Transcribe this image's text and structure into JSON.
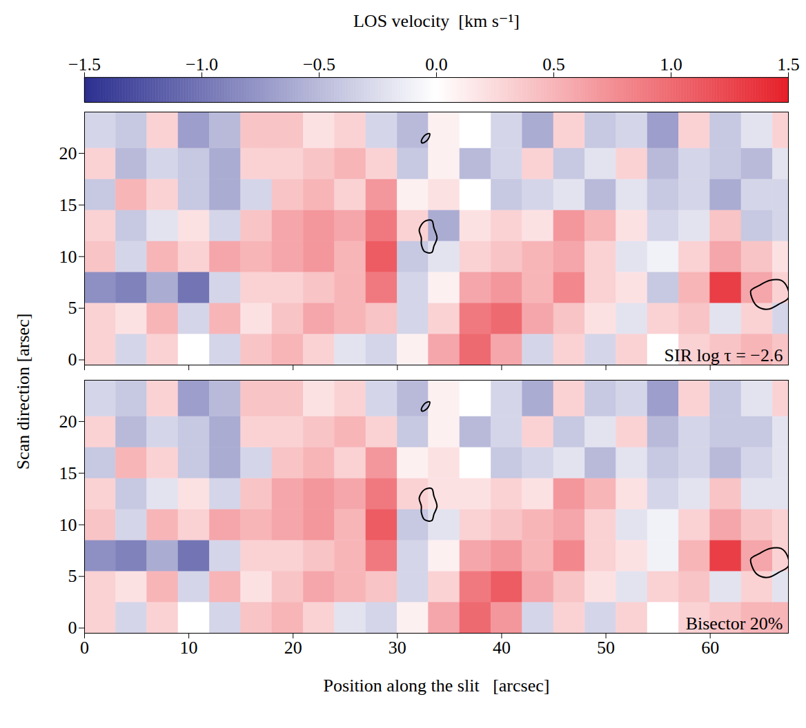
{
  "chart_data": {
    "type": "heatmap",
    "xlabel": "Position along the slit   [arcsec]",
    "ylabel": "Scan direction   [arsec]",
    "colorbar": {
      "label": "LOS velocity  [km s⁻¹]",
      "range": [
        -1.5,
        1.5
      ],
      "ticks": [
        {
          "value": -1.5,
          "label": "−1.5"
        },
        {
          "value": -1,
          "label": "−1.0"
        },
        {
          "value": -0.5,
          "label": "−0.5"
        },
        {
          "value": 0,
          "label": "0.0"
        },
        {
          "value": 0.5,
          "label": "0.5"
        },
        {
          "value": 1,
          "label": "1.0"
        },
        {
          "value": 1.5,
          "label": "1.5"
        }
      ],
      "colors": [
        "#2c2f8f",
        "#ffffff",
        "#e6202a"
      ]
    },
    "panels": [
      {
        "title": "SIR log τ = −2.6",
        "xlim": [
          0,
          67.5
        ],
        "ylim": [
          -0.5,
          24
        ],
        "xticks": [
          0,
          10,
          20,
          30,
          40,
          50,
          60
        ],
        "yticks": [
          0,
          5,
          10,
          15,
          20
        ],
        "tick_labels": "y",
        "xbins": [
          0,
          3,
          6,
          9,
          12,
          15,
          18,
          21,
          24,
          27,
          30,
          33,
          36,
          39,
          42,
          45,
          48,
          51,
          54,
          57,
          60,
          63,
          66,
          69
        ],
        "ybins": [
          -0.5,
          2.5,
          5.5,
          8.5,
          11.5,
          14.5,
          17.5,
          20.5,
          24
        ],
        "values": [
          [
            0.3,
            -0.3,
            0.3,
            0.0,
            -0.3,
            0.4,
            0.5,
            0.3,
            -0.2,
            -0.3,
            0.1,
            0.6,
            1.0,
            0.6,
            -0.3,
            0.3,
            -0.3,
            0.3,
            0.0,
            0.3,
            0.4,
            0.5,
            0.4
          ],
          [
            0.3,
            0.2,
            0.5,
            -0.3,
            0.5,
            0.2,
            0.4,
            0.6,
            0.5,
            0.4,
            -0.3,
            0.3,
            0.9,
            1.0,
            0.6,
            0.4,
            0.2,
            -0.2,
            0.3,
            0.4,
            -0.2,
            0.3,
            -0.3
          ],
          [
            -0.8,
            -0.9,
            -0.6,
            -1.0,
            -0.3,
            0.3,
            0.3,
            0.4,
            0.5,
            0.9,
            -0.3,
            0.1,
            0.6,
            0.7,
            0.5,
            0.8,
            0.3,
            0.2,
            -0.4,
            0.5,
            1.3,
            0.6,
            0.3
          ],
          [
            0.4,
            -0.3,
            0.5,
            0.3,
            0.6,
            0.5,
            0.6,
            0.7,
            0.5,
            1.1,
            -0.4,
            -0.2,
            0.3,
            0.4,
            0.5,
            0.6,
            0.3,
            -0.2,
            -0.1,
            0.3,
            0.6,
            0.4,
            0.2
          ],
          [
            0.3,
            -0.4,
            -0.2,
            0.2,
            -0.3,
            0.4,
            0.6,
            0.7,
            0.6,
            0.9,
            0.3,
            -0.6,
            0.2,
            0.3,
            0.2,
            0.7,
            0.5,
            0.2,
            -0.3,
            -0.2,
            0.4,
            -0.4,
            -0.3
          ],
          [
            -0.4,
            0.5,
            0.3,
            -0.4,
            -0.6,
            -0.3,
            0.4,
            0.5,
            0.3,
            0.7,
            0.1,
            0.2,
            0.0,
            -0.4,
            -0.3,
            -0.2,
            -0.5,
            -0.2,
            -0.4,
            -0.3,
            -0.6,
            -0.3,
            -0.3
          ],
          [
            0.3,
            -0.5,
            -0.3,
            -0.4,
            -0.6,
            0.3,
            0.3,
            0.4,
            0.5,
            0.3,
            -0.4,
            0.1,
            -0.5,
            -0.3,
            0.3,
            -0.4,
            -0.2,
            0.3,
            -0.5,
            -0.3,
            -0.4,
            -0.5,
            -0.2
          ],
          [
            -0.3,
            -0.4,
            0.3,
            -0.7,
            -0.5,
            0.4,
            0.4,
            0.2,
            0.3,
            -0.3,
            -0.5,
            0.1,
            0.0,
            -0.3,
            -0.6,
            0.3,
            -0.4,
            -0.3,
            -0.7,
            0.3,
            -0.4,
            -0.2,
            0.3
          ]
        ],
        "contours": [
          {
            "x": [
              32.3,
              32.7,
              33.1,
              32.9,
              32.4
            ],
            "y": [
              21.2,
              21.8,
              21.9,
              21.3,
              21.0
            ]
          },
          {
            "x": [
              32.3,
              32.6,
              33.3,
              33.5,
              33.8,
              33.5,
              33.3,
              32.6,
              32.1,
              32.3
            ],
            "y": [
              11.2,
              10.5,
              10.4,
              11.0,
              11.8,
              12.8,
              13.5,
              13.4,
              12.6,
              11.8
            ]
          },
          {
            "x": [
              64.0,
              64.5,
              65.5,
              66.6,
              67.5,
              67.4,
              66.8,
              65.7,
              64.7,
              63.9
            ],
            "y": [
              6.0,
              5.2,
              4.9,
              5.4,
              6.0,
              7.0,
              7.7,
              7.7,
              7.2,
              6.7
            ]
          }
        ]
      },
      {
        "title": "Bisector 20%",
        "xlim": [
          0,
          67.5
        ],
        "ylim": [
          -0.5,
          24
        ],
        "xticks": [
          0,
          10,
          20,
          30,
          40,
          50,
          60
        ],
        "yticks": [
          0,
          5,
          10,
          15,
          20
        ],
        "tick_labels": true,
        "xbins": [
          0,
          3,
          6,
          9,
          12,
          15,
          18,
          21,
          24,
          27,
          30,
          33,
          36,
          39,
          42,
          45,
          48,
          51,
          54,
          57,
          60,
          63,
          66,
          69
        ],
        "ybins": [
          -0.5,
          2.5,
          5.5,
          8.5,
          11.5,
          14.5,
          17.5,
          20.5,
          24
        ],
        "values": [
          [
            0.3,
            -0.3,
            0.3,
            0.0,
            -0.3,
            0.4,
            0.5,
            0.3,
            -0.2,
            -0.3,
            0.1,
            0.6,
            1.0,
            0.7,
            -0.3,
            0.3,
            -0.3,
            0.3,
            0.0,
            0.3,
            0.4,
            0.5,
            0.5
          ],
          [
            0.3,
            0.2,
            0.5,
            -0.3,
            0.5,
            0.2,
            0.4,
            0.6,
            0.5,
            0.4,
            -0.3,
            0.3,
            0.9,
            1.1,
            0.6,
            0.4,
            0.2,
            -0.2,
            0.3,
            0.4,
            -0.2,
            0.3,
            -0.2
          ],
          [
            -0.8,
            -0.9,
            -0.6,
            -1.0,
            -0.3,
            0.3,
            0.3,
            0.4,
            0.5,
            0.9,
            -0.3,
            0.1,
            0.6,
            0.7,
            0.5,
            0.8,
            0.3,
            0.2,
            -0.1,
            0.5,
            1.3,
            0.6,
            0.3
          ],
          [
            0.4,
            -0.3,
            0.5,
            0.3,
            0.6,
            0.5,
            0.6,
            0.7,
            0.5,
            1.1,
            -0.4,
            -0.2,
            0.3,
            0.4,
            0.5,
            0.6,
            0.3,
            -0.2,
            -0.1,
            0.3,
            0.6,
            0.4,
            0.3
          ],
          [
            0.3,
            -0.4,
            -0.2,
            0.2,
            -0.3,
            0.4,
            0.6,
            0.7,
            0.6,
            0.9,
            0.3,
            0.2,
            0.2,
            0.3,
            0.2,
            0.7,
            0.5,
            0.2,
            -0.3,
            -0.2,
            0.4,
            -0.2,
            -0.2
          ],
          [
            -0.4,
            0.5,
            0.3,
            -0.4,
            -0.6,
            -0.3,
            0.4,
            0.5,
            0.3,
            0.7,
            0.1,
            0.2,
            0.0,
            -0.4,
            -0.3,
            -0.2,
            -0.5,
            -0.2,
            -0.4,
            -0.3,
            -0.5,
            -0.3,
            -0.2
          ],
          [
            0.3,
            -0.5,
            -0.3,
            -0.4,
            -0.6,
            0.3,
            0.3,
            0.4,
            0.5,
            0.3,
            -0.4,
            0.1,
            -0.5,
            -0.3,
            0.3,
            -0.4,
            -0.2,
            0.3,
            -0.5,
            -0.3,
            -0.4,
            -0.4,
            -0.2
          ],
          [
            -0.3,
            -0.4,
            0.3,
            -0.7,
            -0.5,
            0.4,
            0.4,
            0.2,
            0.3,
            -0.3,
            -0.5,
            0.1,
            0.0,
            -0.3,
            -0.6,
            0.3,
            -0.4,
            -0.3,
            -0.7,
            0.3,
            -0.4,
            -0.2,
            0.3
          ]
        ],
        "contours": [
          {
            "x": [
              32.3,
              32.7,
              33.1,
              32.9,
              32.4
            ],
            "y": [
              21.2,
              21.8,
              21.9,
              21.3,
              21.0
            ]
          },
          {
            "x": [
              32.3,
              32.6,
              33.3,
              33.5,
              33.8,
              33.5,
              33.3,
              32.6,
              32.1,
              32.3
            ],
            "y": [
              11.2,
              10.5,
              10.4,
              11.0,
              11.8,
              12.8,
              13.5,
              13.4,
              12.6,
              11.8
            ]
          },
          {
            "x": [
              64.0,
              64.5,
              65.5,
              66.6,
              67.5,
              67.4,
              66.8,
              65.7,
              64.7,
              63.9
            ],
            "y": [
              6.0,
              5.2,
              4.9,
              5.4,
              6.0,
              7.0,
              7.7,
              7.7,
              7.2,
              6.7
            ]
          }
        ]
      }
    ]
  }
}
